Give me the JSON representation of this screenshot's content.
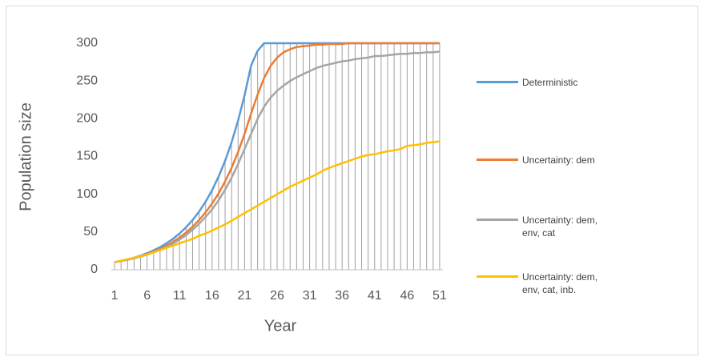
{
  "chart_data": {
    "type": "line",
    "x_label": "Year",
    "y_label": "Population size",
    "categories": [
      1,
      null,
      null,
      null,
      null,
      6,
      null,
      null,
      null,
      null,
      11,
      null,
      null,
      null,
      null,
      16,
      null,
      null,
      null,
      null,
      21,
      null,
      null,
      null,
      null,
      26,
      null,
      null,
      null,
      null,
      31,
      null,
      null,
      null,
      null,
      36,
      null,
      null,
      null,
      null,
      41,
      null,
      null,
      null,
      null,
      46,
      null,
      null,
      null,
      null,
      51
    ],
    "series": [
      {
        "name": "Deterministic",
        "color": "#5b9bd5",
        "values": [
          10,
          11.7,
          13.7,
          16,
          18.7,
          21.9,
          25.7,
          30,
          35.1,
          41.1,
          48.1,
          56.3,
          65.8,
          77,
          90.1,
          105.4,
          123.4,
          144.3,
          168.9,
          197.6,
          231.2,
          270.5,
          290,
          300,
          300,
          300,
          300,
          300,
          300,
          300,
          300,
          300,
          300,
          300,
          300,
          300,
          300,
          300,
          300,
          300,
          300,
          300,
          300,
          300,
          300,
          300,
          300,
          300,
          300,
          300,
          300
        ]
      },
      {
        "name": "Uncertainty: dem",
        "color": "#ed7d31",
        "values": [
          10,
          11.6,
          13.4,
          15.5,
          18,
          20.8,
          24,
          27.7,
          32,
          37,
          42.7,
          49.3,
          57,
          65.8,
          76,
          87.8,
          101,
          117,
          135,
          156,
          180,
          207,
          232,
          254,
          270,
          281,
          288,
          292,
          295,
          296,
          297,
          298,
          298,
          299,
          299,
          299,
          300,
          300,
          300,
          300,
          300,
          300,
          300,
          300,
          300,
          300,
          300,
          300,
          300,
          300,
          300
        ]
      },
      {
        "name": "Uncertainty: dem, env, cat",
        "color": "#a5a5a5",
        "values": [
          10,
          11.5,
          13.2,
          15.2,
          17.4,
          20,
          23,
          26.4,
          30.3,
          34.8,
          40,
          46,
          53,
          61,
          70,
          80,
          92,
          106,
          122,
          140,
          160,
          180,
          200,
          216,
          228,
          237,
          244,
          250,
          255,
          259,
          263,
          267,
          270,
          272,
          274,
          276,
          277,
          279,
          280,
          281,
          283,
          283,
          284,
          285,
          286,
          286,
          287,
          287,
          288,
          288,
          289
        ]
      },
      {
        "name": "Uncertainty: dem, env, cat, inb.",
        "color": "#ffc000",
        "values": [
          10,
          12,
          14,
          16,
          18,
          20,
          23,
          26,
          29,
          32,
          35,
          38,
          41,
          45,
          48,
          52,
          56,
          60,
          65,
          70,
          75,
          80,
          85,
          90,
          95,
          100,
          105,
          110,
          114,
          118,
          122,
          126,
          131,
          135,
          138,
          141,
          144,
          147,
          150,
          152,
          153,
          155,
          157,
          158,
          160,
          164,
          165,
          166,
          168,
          169,
          170
        ]
      }
    ],
    "ylim": [
      0,
      300
    ],
    "yticks": [
      0,
      50,
      100,
      150,
      200,
      250,
      300
    ],
    "drop_lines": true,
    "legend": "right"
  }
}
